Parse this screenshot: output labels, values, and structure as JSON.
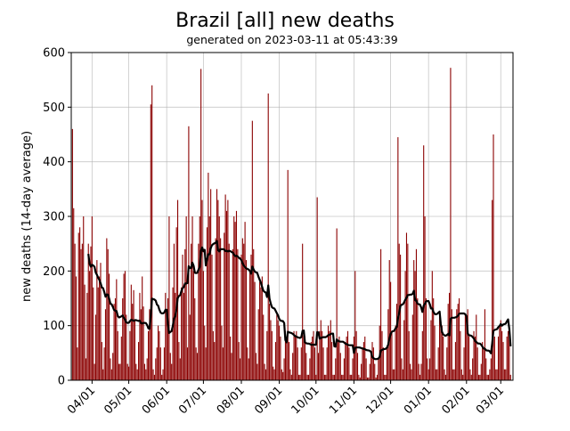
{
  "chart_data": {
    "type": "bar",
    "title": "Brazil [all] new deaths",
    "subtitle": "generated on 2023-03-11 at 05:43:39",
    "ylabel": "new deaths (14-day average)",
    "xlabel": "",
    "ylim": [
      0,
      600
    ],
    "yticks": [
      0,
      100,
      200,
      300,
      400,
      500,
      600
    ],
    "xlim": [
      "2022-03-15",
      "2023-03-11"
    ],
    "xticks": [
      {
        "date": "2022-04-01",
        "label": "04/01"
      },
      {
        "date": "2022-05-01",
        "label": "05/01"
      },
      {
        "date": "2022-06-01",
        "label": "06/01"
      },
      {
        "date": "2022-07-01",
        "label": "07/01"
      },
      {
        "date": "2022-08-01",
        "label": "08/01"
      },
      {
        "date": "2022-09-01",
        "label": "09/01"
      },
      {
        "date": "2022-10-01",
        "label": "10/01"
      },
      {
        "date": "2022-11-01",
        "label": "11/01"
      },
      {
        "date": "2022-12-01",
        "label": "12/01"
      },
      {
        "date": "2023-01-01",
        "label": "01/01"
      },
      {
        "date": "2023-02-01",
        "label": "02/01"
      },
      {
        "date": "2023-03-01",
        "label": "03/01"
      }
    ],
    "grid": true,
    "bar_color": "#8b0000",
    "line_color": "#000000",
    "average_window_days": 14,
    "start_date": "2022-03-16",
    "daily_values": [
      460,
      315,
      250,
      190,
      60,
      270,
      280,
      240,
      250,
      300,
      175,
      40,
      160,
      250,
      200,
      245,
      300,
      170,
      30,
      120,
      220,
      170,
      190,
      215,
      70,
      20,
      60,
      130,
      260,
      240,
      195,
      40,
      20,
      50,
      140,
      150,
      185,
      90,
      30,
      30,
      80,
      150,
      195,
      200,
      120,
      30,
      25,
      90,
      175,
      140,
      165,
      110,
      30,
      20,
      70,
      160,
      130,
      190,
      135,
      30,
      20,
      40,
      90,
      130,
      505,
      540,
      20,
      10,
      40,
      60,
      100,
      90,
      60,
      10,
      20,
      60,
      160,
      130,
      150,
      300,
      50,
      30,
      170,
      250,
      160,
      280,
      330,
      70,
      40,
      170,
      230,
      160,
      240,
      300,
      60,
      465,
      120,
      250,
      300,
      200,
      150,
      60,
      50,
      250,
      300,
      570,
      330,
      200,
      100,
      60,
      280,
      380,
      300,
      350,
      230,
      90,
      70,
      260,
      350,
      330,
      300,
      260,
      100,
      60,
      270,
      340,
      310,
      330,
      250,
      80,
      50,
      240,
      300,
      290,
      310,
      240,
      70,
      40,
      230,
      260,
      250,
      290,
      220,
      60,
      40,
      200,
      230,
      475,
      240,
      180,
      50,
      30,
      130,
      180,
      170,
      190,
      120,
      30,
      20,
      90,
      525,
      140,
      110,
      90,
      25,
      20,
      70,
      120,
      110,
      100,
      80,
      20,
      15,
      40,
      90,
      80,
      385,
      70,
      20,
      10,
      50,
      90,
      80,
      90,
      60,
      10,
      10,
      60,
      250,
      90,
      80,
      50,
      10,
      10,
      40,
      70,
      80,
      90,
      60,
      10,
      335,
      50,
      90,
      110,
      90,
      60,
      10,
      10,
      60,
      100,
      90,
      110,
      70,
      10,
      10,
      40,
      278,
      70,
      80,
      50,
      10,
      10,
      40,
      70,
      80,
      90,
      60,
      10,
      10,
      40,
      80,
      200,
      90,
      50,
      10,
      5,
      30,
      60,
      70,
      80,
      40,
      5,
      5,
      30,
      50,
      70,
      60,
      30,
      5,
      10,
      40,
      100,
      240,
      90,
      60,
      10,
      10,
      60,
      130,
      220,
      180,
      90,
      20,
      20,
      100,
      140,
      445,
      250,
      230,
      40,
      20,
      110,
      200,
      270,
      250,
      90,
      30,
      20,
      120,
      220,
      200,
      240,
      150,
      30,
      10,
      30,
      90,
      430,
      300,
      150,
      40,
      20,
      40,
      110,
      200,
      150,
      100,
      20,
      20,
      60,
      120,
      110,
      100,
      80,
      20,
      10,
      60,
      140,
      160,
      572,
      130,
      20,
      20,
      70,
      130,
      140,
      150,
      90,
      20,
      10,
      60,
      120,
      110,
      130,
      80,
      20,
      10,
      40,
      90,
      80,
      120,
      60,
      10,
      10,
      30,
      70,
      60,
      130,
      40,
      10,
      10,
      20,
      40,
      330,
      450,
      80,
      20,
      20,
      80,
      100,
      110,
      90,
      70,
      20,
      20,
      80,
      90,
      80,
      10
    ]
  }
}
